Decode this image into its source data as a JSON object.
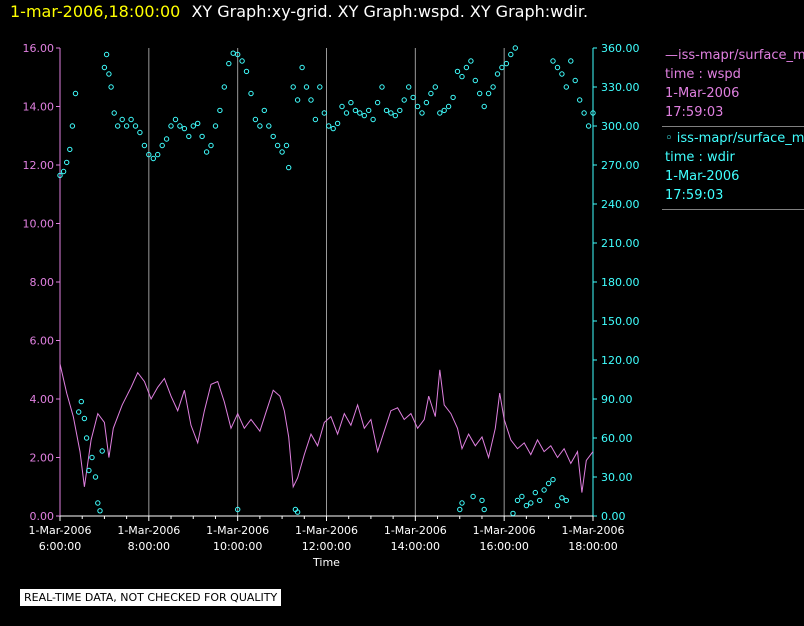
{
  "title": {
    "time": "1-mar-2006,18:00:00",
    "graphs": "XY Graph:xy-grid.  XY Graph:wspd.  XY Graph:wdir."
  },
  "colors": {
    "wspd": "#e080e0",
    "wdir": "#40ffff",
    "grid": "#9a9a9a",
    "axis": "#ffffff"
  },
  "legend": {
    "wspd": {
      "source": "—iss-mapr/surface_m",
      "var": "time : wspd",
      "date": "1-Mar-2006",
      "time": "17:59:03"
    },
    "wdir": {
      "source": "◦ iss-mapr/surface_m",
      "var": "time : wdir",
      "date": "1-Mar-2006",
      "time": "17:59:03"
    }
  },
  "footer": "REAL-TIME DATA, NOT CHECKED FOR QUALITY",
  "chart_data": {
    "type": "line+scatter",
    "xlabel": "Time",
    "x_range_hours": [
      6.0,
      18.0
    ],
    "x_ticks": [
      {
        "h": 6,
        "date": "1-Mar-2006",
        "time": "6:00:00"
      },
      {
        "h": 8,
        "date": "1-Mar-2006",
        "time": "8:00:00"
      },
      {
        "h": 10,
        "date": "1-Mar-2006",
        "time": "10:00:00"
      },
      {
        "h": 12,
        "date": "1-Mar-2006",
        "time": "12:00:00"
      },
      {
        "h": 14,
        "date": "1-Mar-2006",
        "time": "14:00:00"
      },
      {
        "h": 16,
        "date": "1-Mar-2006",
        "time": "16:00:00"
      },
      {
        "h": 18,
        "date": "1-Mar-2006",
        "time": "18:00:00"
      }
    ],
    "y_left": {
      "label": "wspd",
      "range": [
        0,
        16
      ],
      "ticks": [
        "0.00",
        "2.00",
        "4.00",
        "6.00",
        "8.00",
        "10.00",
        "12.00",
        "14.00",
        "16.00"
      ]
    },
    "y_right": {
      "label": "wdir",
      "range": [
        0,
        360
      ],
      "ticks": [
        "0.00",
        "30.00",
        "60.00",
        "90.00",
        "120.00",
        "150.00",
        "180.00",
        "210.00",
        "240.00",
        "270.00",
        "300.00",
        "330.00",
        "360.00"
      ]
    },
    "series": [
      {
        "name": "wspd",
        "kind": "line",
        "axis": "left",
        "points": [
          [
            6.0,
            5.2
          ],
          [
            6.15,
            4.2
          ],
          [
            6.3,
            3.4
          ],
          [
            6.45,
            2.2
          ],
          [
            6.55,
            1.0
          ],
          [
            6.7,
            2.6
          ],
          [
            6.85,
            3.5
          ],
          [
            7.0,
            3.2
          ],
          [
            7.1,
            2.0
          ],
          [
            7.2,
            3.0
          ],
          [
            7.4,
            3.8
          ],
          [
            7.6,
            4.4
          ],
          [
            7.75,
            4.9
          ],
          [
            7.9,
            4.6
          ],
          [
            8.05,
            4.0
          ],
          [
            8.2,
            4.4
          ],
          [
            8.35,
            4.7
          ],
          [
            8.5,
            4.1
          ],
          [
            8.65,
            3.6
          ],
          [
            8.8,
            4.3
          ],
          [
            8.95,
            3.1
          ],
          [
            9.1,
            2.5
          ],
          [
            9.25,
            3.6
          ],
          [
            9.4,
            4.5
          ],
          [
            9.55,
            4.6
          ],
          [
            9.7,
            3.9
          ],
          [
            9.85,
            3.0
          ],
          [
            10.0,
            3.5
          ],
          [
            10.15,
            3.0
          ],
          [
            10.3,
            3.3
          ],
          [
            10.5,
            2.9
          ],
          [
            10.65,
            3.6
          ],
          [
            10.8,
            4.3
          ],
          [
            10.95,
            4.1
          ],
          [
            11.05,
            3.6
          ],
          [
            11.15,
            2.7
          ],
          [
            11.25,
            1.0
          ],
          [
            11.35,
            1.3
          ],
          [
            11.5,
            2.1
          ],
          [
            11.65,
            2.8
          ],
          [
            11.8,
            2.4
          ],
          [
            11.95,
            3.2
          ],
          [
            12.1,
            3.4
          ],
          [
            12.25,
            2.8
          ],
          [
            12.4,
            3.5
          ],
          [
            12.55,
            3.1
          ],
          [
            12.7,
            3.8
          ],
          [
            12.85,
            3.0
          ],
          [
            13.0,
            3.3
          ],
          [
            13.15,
            2.2
          ],
          [
            13.3,
            2.9
          ],
          [
            13.45,
            3.6
          ],
          [
            13.6,
            3.7
          ],
          [
            13.75,
            3.3
          ],
          [
            13.9,
            3.5
          ],
          [
            14.05,
            3.0
          ],
          [
            14.2,
            3.3
          ],
          [
            14.3,
            4.1
          ],
          [
            14.45,
            3.4
          ],
          [
            14.55,
            5.0
          ],
          [
            14.65,
            3.8
          ],
          [
            14.8,
            3.5
          ],
          [
            14.95,
            3.0
          ],
          [
            15.05,
            2.3
          ],
          [
            15.2,
            2.8
          ],
          [
            15.35,
            2.4
          ],
          [
            15.5,
            2.7
          ],
          [
            15.65,
            2.0
          ],
          [
            15.8,
            3.0
          ],
          [
            15.9,
            4.2
          ],
          [
            16.0,
            3.3
          ],
          [
            16.15,
            2.6
          ],
          [
            16.3,
            2.3
          ],
          [
            16.45,
            2.5
          ],
          [
            16.6,
            2.1
          ],
          [
            16.75,
            2.6
          ],
          [
            16.9,
            2.2
          ],
          [
            17.05,
            2.4
          ],
          [
            17.2,
            2.0
          ],
          [
            17.35,
            2.3
          ],
          [
            17.5,
            1.8
          ],
          [
            17.65,
            2.2
          ],
          [
            17.75,
            0.8
          ],
          [
            17.85,
            1.9
          ],
          [
            18.0,
            2.2
          ]
        ]
      },
      {
        "name": "wdir",
        "kind": "scatter",
        "axis": "right",
        "points": [
          [
            6.0,
            262
          ],
          [
            6.08,
            265
          ],
          [
            6.15,
            272
          ],
          [
            6.22,
            282
          ],
          [
            6.28,
            300
          ],
          [
            6.35,
            325
          ],
          [
            6.42,
            80
          ],
          [
            6.48,
            88
          ],
          [
            6.55,
            75
          ],
          [
            6.6,
            60
          ],
          [
            6.65,
            35
          ],
          [
            6.72,
            45
          ],
          [
            6.8,
            30
          ],
          [
            6.85,
            10
          ],
          [
            6.9,
            4
          ],
          [
            6.95,
            50
          ],
          [
            7.0,
            345
          ],
          [
            7.05,
            355
          ],
          [
            7.1,
            340
          ],
          [
            7.15,
            330
          ],
          [
            7.22,
            310
          ],
          [
            7.3,
            300
          ],
          [
            7.4,
            305
          ],
          [
            7.5,
            300
          ],
          [
            7.6,
            305
          ],
          [
            7.7,
            300
          ],
          [
            7.8,
            295
          ],
          [
            7.9,
            285
          ],
          [
            8.0,
            278
          ],
          [
            8.1,
            275
          ],
          [
            8.2,
            278
          ],
          [
            8.3,
            285
          ],
          [
            8.4,
            290
          ],
          [
            8.5,
            300
          ],
          [
            8.6,
            305
          ],
          [
            8.7,
            300
          ],
          [
            8.8,
            298
          ],
          [
            8.9,
            292
          ],
          [
            9.0,
            300
          ],
          [
            9.1,
            302
          ],
          [
            9.2,
            292
          ],
          [
            9.3,
            280
          ],
          [
            9.4,
            285
          ],
          [
            9.5,
            300
          ],
          [
            9.6,
            312
          ],
          [
            9.7,
            330
          ],
          [
            9.8,
            348
          ],
          [
            9.9,
            356
          ],
          [
            10.0,
            355
          ],
          [
            10.1,
            350
          ],
          [
            10.2,
            342
          ],
          [
            10.3,
            325
          ],
          [
            10.4,
            305
          ],
          [
            10.5,
            300
          ],
          [
            10.6,
            312
          ],
          [
            10.7,
            300
          ],
          [
            10.8,
            292
          ],
          [
            10.9,
            285
          ],
          [
            11.0,
            280
          ],
          [
            11.1,
            285
          ],
          [
            11.15,
            268
          ],
          [
            11.25,
            330
          ],
          [
            11.35,
            320
          ],
          [
            11.45,
            345
          ],
          [
            11.55,
            330
          ],
          [
            11.65,
            320
          ],
          [
            11.75,
            305
          ],
          [
            11.85,
            330
          ],
          [
            11.95,
            310
          ],
          [
            12.05,
            300
          ],
          [
            12.15,
            298
          ],
          [
            12.25,
            302
          ],
          [
            12.35,
            315
          ],
          [
            12.45,
            310
          ],
          [
            12.55,
            318
          ],
          [
            12.65,
            312
          ],
          [
            12.75,
            310
          ],
          [
            12.85,
            308
          ],
          [
            12.95,
            312
          ],
          [
            13.05,
            305
          ],
          [
            13.15,
            318
          ],
          [
            13.25,
            330
          ],
          [
            13.35,
            312
          ],
          [
            13.45,
            310
          ],
          [
            13.55,
            308
          ],
          [
            13.65,
            312
          ],
          [
            13.75,
            320
          ],
          [
            13.85,
            330
          ],
          [
            13.95,
            322
          ],
          [
            14.05,
            315
          ],
          [
            14.15,
            310
          ],
          [
            14.25,
            318
          ],
          [
            14.35,
            325
          ],
          [
            14.45,
            330
          ],
          [
            14.55,
            310
          ],
          [
            14.65,
            312
          ],
          [
            14.75,
            315
          ],
          [
            14.85,
            322
          ],
          [
            14.95,
            342
          ],
          [
            15.05,
            338
          ],
          [
            15.15,
            345
          ],
          [
            15.25,
            350
          ],
          [
            15.35,
            335
          ],
          [
            15.45,
            325
          ],
          [
            15.55,
            315
          ],
          [
            15.65,
            325
          ],
          [
            15.75,
            330
          ],
          [
            15.85,
            340
          ],
          [
            15.95,
            345
          ],
          [
            16.05,
            348
          ],
          [
            16.15,
            355
          ],
          [
            16.25,
            360
          ],
          [
            15.0,
            5
          ],
          [
            15.05,
            10
          ],
          [
            15.3,
            15
          ],
          [
            15.5,
            12
          ],
          [
            15.55,
            5
          ],
          [
            16.2,
            2
          ],
          [
            16.3,
            12
          ],
          [
            16.4,
            15
          ],
          [
            16.5,
            8
          ],
          [
            16.6,
            10
          ],
          [
            16.7,
            18
          ],
          [
            16.8,
            12
          ],
          [
            16.9,
            20
          ],
          [
            17.0,
            25
          ],
          [
            17.1,
            28
          ],
          [
            17.2,
            8
          ],
          [
            17.3,
            14
          ],
          [
            17.4,
            12
          ],
          [
            17.1,
            350
          ],
          [
            17.2,
            345
          ],
          [
            17.3,
            340
          ],
          [
            17.4,
            330
          ],
          [
            17.5,
            350
          ],
          [
            17.6,
            335
          ],
          [
            17.7,
            320
          ],
          [
            17.8,
            310
          ],
          [
            17.9,
            300
          ],
          [
            18.0,
            310
          ],
          [
            10.0,
            5
          ],
          [
            11.3,
            5
          ],
          [
            11.35,
            3
          ]
        ]
      }
    ]
  }
}
